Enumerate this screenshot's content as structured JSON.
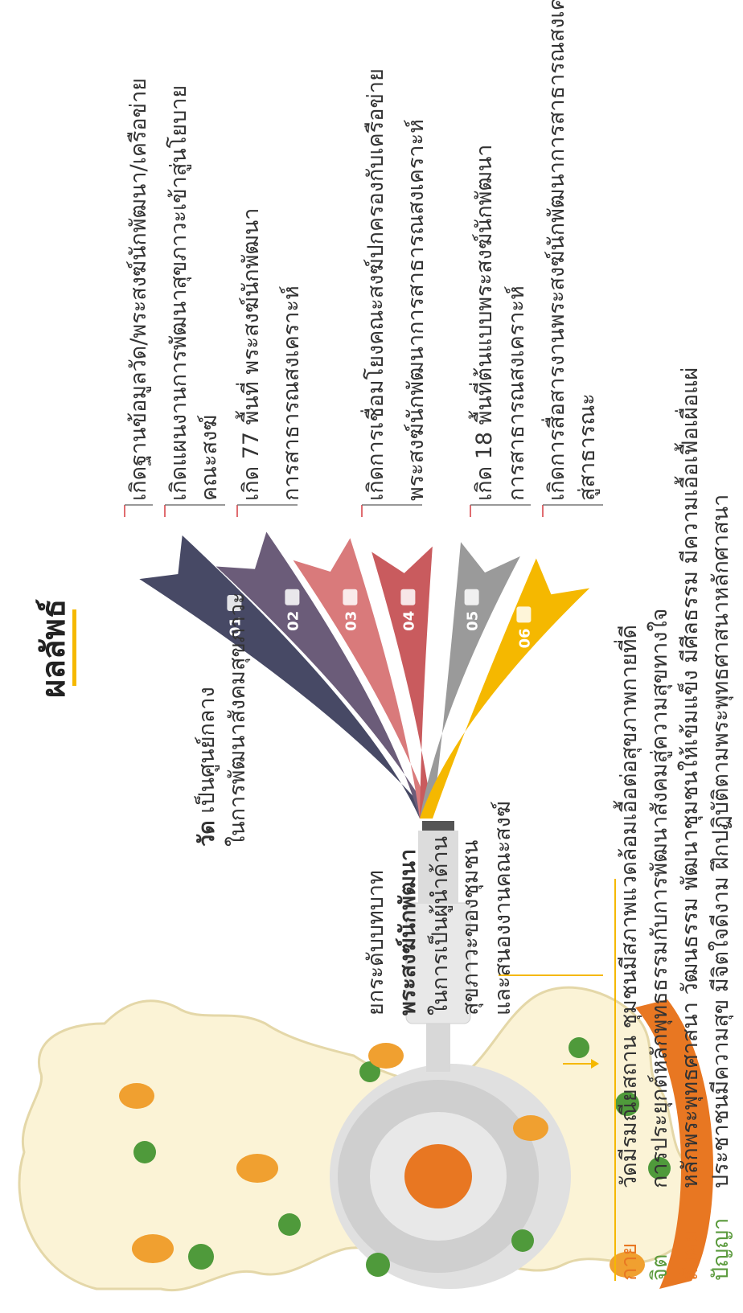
{
  "title": "ผลลัพธ์",
  "center": {
    "line1_bold": "วัด",
    "line1_rest": " เป็นศูนย์กลาง",
    "line2": "ในการพัฒนาสังคมสุขภาวะ",
    "block": [
      "ยกระดับบทบาท",
      "พระสงฆ์นักพัฒนา",
      "ในการเป็นผู้นำด้าน",
      "สุขภาวะของชุมชน",
      "และสนองงานคณะสงฆ์"
    ]
  },
  "outcomes": [
    {
      "num": "01",
      "color": "#474965",
      "lines": [
        "เกิดฐานข้อมูลวัด/พระสงฆ์นักพัฒนา/เครือข่าย"
      ]
    },
    {
      "num": "02",
      "color": "#6b5c79",
      "lines": [
        "เกิดแผนงานการพัฒนาสุขภาวะเข้าสู่นโยบาย",
        "คณะสงฆ์"
      ]
    },
    {
      "num": "03",
      "color": "#d97a7b",
      "lines": [
        "เกิด 77 พื้นที่ พระสงฆ์นักพัฒนา",
        "การสาธารณสงเคราะห์"
      ]
    },
    {
      "num": "04",
      "color": "#c95b5e",
      "lines": [
        "เกิดการเชื่อมโยงคณะสงฆ์ปกครองกับเครือข่าย",
        "พระสงฆ์นักพัฒนาการสาธารณสงเคราะห์"
      ]
    },
    {
      "num": "05",
      "color": "#9a9a9a",
      "lines": [
        "เกิด 18 พื้นที่ต้นแบบพระสงฆ์นักพัฒนา",
        "การสาธารณสงเคราะห์"
      ]
    },
    {
      "num": "06",
      "color": "#f5b800",
      "lines": [
        "เกิดการสื่อสารงานพระสงฆ์นักพัฒนาการสาธารณสงเคราะห์",
        "สู่สาธารณะ"
      ]
    }
  ],
  "dimensions": [
    {
      "label": "กาย",
      "color": "#e87722",
      "text": "วัดมีรมณียสถาน ชุมชนมีสภาพแวดล้อมเอื้อต่อสุขภาพกายที่ดี"
    },
    {
      "label": "จิต",
      "color": "#5a9a3c",
      "text": "การประยุกต์หลักพุทธธรรมกับการพัฒนาสังคมสู่ความสุขทางใจ"
    },
    {
      "label": "สังคม",
      "color": "#e87722",
      "text": "หลักพระพุทธศาสนา วัฒนธรรม พัฒนาชุมชนให้เข้มแข็ง มีศีลธรรม มีความเอื้อเฟื้อเผื่อแผ่"
    },
    {
      "label": "ปัญญา",
      "color": "#5a9a3c",
      "text": "ประชาชนมีความสุข มีจิตใจดีงาม ฝึกปฏิบัติตามพระพุทธศาสนาหลักศาสนา"
    }
  ],
  "colors": {
    "accent": "#f5b800",
    "line": "#e06c70",
    "text": "#333333"
  }
}
